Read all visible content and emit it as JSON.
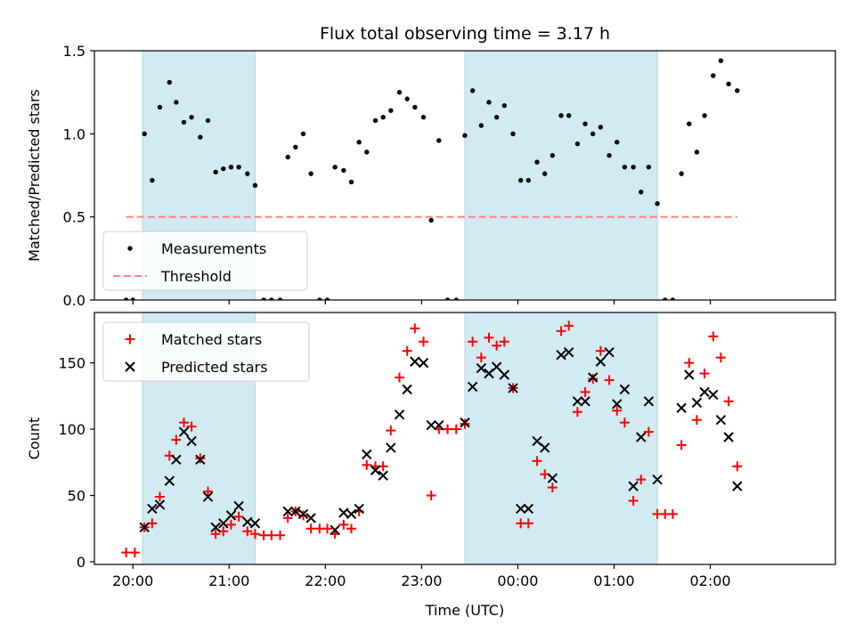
{
  "chart_data": [
    {
      "type": "scatter",
      "title": "Flux total observing time = 3.17 h",
      "xlabel": "",
      "ylabel": "Matched/Predicted stars",
      "ylim": [
        0,
        1.5
      ],
      "yticks": [
        0,
        0.5,
        1.0,
        1.5
      ],
      "ytick_labels": [
        "0.0",
        "0.5",
        "1.0",
        "1.5"
      ],
      "xlim_hours": [
        19.6,
        27.3
      ],
      "xticks": [
        20,
        21,
        22,
        23,
        24,
        25,
        26
      ],
      "xtick_labels": [],
      "shaded_x_ranges_hours": [
        [
          20.1,
          21.27
        ],
        [
          23.45,
          25.45
        ]
      ],
      "shade_color": "#add8e6",
      "legend_position": "lower-left",
      "series": [
        {
          "name": "Measurements",
          "marker": "dot",
          "color": "#000000",
          "x": [
            19.93,
            20.0,
            20.12,
            20.2,
            20.28,
            20.38,
            20.45,
            20.53,
            20.61,
            20.7,
            20.78,
            20.86,
            20.94,
            21.02,
            21.1,
            21.19,
            21.27,
            21.36,
            21.44,
            21.53,
            21.61,
            21.69,
            21.77,
            21.85,
            21.94,
            22.02,
            22.1,
            22.19,
            22.27,
            22.35,
            22.43,
            22.52,
            22.6,
            22.68,
            22.77,
            22.85,
            22.93,
            23.02,
            23.1,
            23.18,
            23.27,
            23.36,
            23.45,
            23.53,
            23.62,
            23.7,
            23.78,
            23.86,
            23.95,
            24.03,
            24.11,
            24.2,
            24.28,
            24.36,
            24.45,
            24.53,
            24.62,
            24.7,
            24.78,
            24.86,
            24.95,
            25.03,
            25.11,
            25.2,
            25.28,
            25.36,
            25.45,
            25.53,
            25.61,
            25.7,
            25.78,
            25.86,
            25.94,
            26.03,
            26.11,
            26.19,
            26.28
          ],
          "y": [
            0.0,
            0.0,
            1.0,
            0.72,
            1.16,
            1.31,
            1.19,
            1.07,
            1.1,
            0.98,
            1.08,
            0.77,
            0.79,
            0.8,
            0.8,
            0.76,
            0.69,
            0.0,
            0.0,
            0.0,
            0.86,
            0.92,
            1.0,
            0.76,
            0.0,
            0.0,
            0.8,
            0.78,
            0.71,
            0.95,
            0.89,
            1.08,
            1.1,
            1.14,
            1.25,
            1.21,
            1.16,
            1.1,
            0.48,
            0.96,
            0.0,
            0.0,
            0.99,
            1.26,
            1.05,
            1.19,
            1.1,
            1.17,
            1.0,
            0.72,
            0.72,
            0.83,
            0.76,
            0.87,
            1.11,
            1.11,
            0.94,
            1.06,
            1.0,
            1.04,
            0.87,
            0.95,
            0.8,
            0.8,
            0.65,
            0.8,
            0.58,
            0.0,
            0.0,
            0.76,
            1.06,
            0.89,
            1.11,
            1.35,
            1.44,
            1.3,
            1.26
          ]
        },
        {
          "name": "Threshold",
          "style": "dashed",
          "color": "#ff7f7f",
          "x": [
            19.93,
            26.28
          ],
          "y": [
            0.5,
            0.5
          ]
        }
      ]
    },
    {
      "type": "scatter",
      "title": "",
      "xlabel": "Time (UTC)",
      "ylabel": "Count",
      "ylim": [
        -2,
        188
      ],
      "yticks": [
        0,
        50,
        100,
        150
      ],
      "ytick_labels": [
        "0",
        "50",
        "100",
        "150"
      ],
      "xlim_hours": [
        19.6,
        27.3
      ],
      "xticks": [
        20,
        21,
        22,
        23,
        24,
        25,
        26
      ],
      "xtick_labels": [
        "20:00",
        "21:00",
        "22:00",
        "23:00",
        "00:00",
        "01:00",
        "02:00"
      ],
      "shaded_x_ranges_hours": [
        [
          20.1,
          21.27
        ],
        [
          23.45,
          25.45
        ]
      ],
      "shade_color": "#add8e6",
      "legend_position": "upper-left",
      "series": [
        {
          "name": "Matched stars",
          "marker": "plus",
          "color": "#ff0000",
          "x": [
            19.93,
            20.02,
            20.12,
            20.2,
            20.28,
            20.38,
            20.45,
            20.53,
            20.61,
            20.7,
            20.78,
            20.86,
            20.94,
            21.02,
            21.1,
            21.19,
            21.27,
            21.36,
            21.44,
            21.53,
            21.61,
            21.69,
            21.77,
            21.85,
            21.94,
            22.02,
            22.1,
            22.19,
            22.27,
            22.35,
            22.43,
            22.52,
            22.6,
            22.68,
            22.77,
            22.85,
            22.93,
            23.02,
            23.1,
            23.18,
            23.27,
            23.36,
            23.45,
            23.53,
            23.62,
            23.7,
            23.78,
            23.86,
            23.95,
            24.03,
            24.11,
            24.2,
            24.28,
            24.36,
            24.45,
            24.53,
            24.62,
            24.7,
            24.78,
            24.86,
            24.95,
            25.03,
            25.11,
            25.2,
            25.28,
            25.36,
            25.45,
            25.53,
            25.61,
            25.7,
            25.78,
            25.86,
            25.94,
            26.03,
            26.11,
            26.19,
            26.28
          ],
          "y": [
            7,
            7,
            26,
            29,
            49,
            80,
            92,
            105,
            102,
            78,
            53,
            21,
            23,
            28,
            34,
            23,
            21,
            20,
            20,
            20,
            33,
            38,
            35,
            25,
            25,
            25,
            21,
            28,
            25,
            38,
            73,
            72,
            72,
            99,
            139,
            159,
            176,
            166,
            50,
            100,
            100,
            100,
            104,
            166,
            154,
            169,
            163,
            166,
            131,
            29,
            29,
            76,
            66,
            56,
            174,
            178,
            113,
            128,
            138,
            159,
            137,
            114,
            105,
            46,
            62,
            98,
            36,
            36,
            36,
            88,
            150,
            107,
            142,
            170,
            154,
            121,
            72
          ]
        },
        {
          "name": "Predicted stars",
          "marker": "x",
          "color": "#000000",
          "x": [
            20.12,
            20.2,
            20.28,
            20.38,
            20.45,
            20.53,
            20.61,
            20.7,
            20.78,
            20.86,
            20.94,
            21.02,
            21.1,
            21.19,
            21.27,
            21.61,
            21.69,
            21.77,
            21.85,
            22.1,
            22.19,
            22.27,
            22.35,
            22.43,
            22.52,
            22.6,
            22.68,
            22.77,
            22.85,
            22.93,
            23.02,
            23.1,
            23.18,
            23.45,
            23.53,
            23.62,
            23.7,
            23.78,
            23.86,
            23.95,
            24.03,
            24.11,
            24.2,
            24.28,
            24.36,
            24.45,
            24.53,
            24.62,
            24.7,
            24.78,
            24.86,
            24.95,
            25.03,
            25.11,
            25.2,
            25.28,
            25.36,
            25.45,
            25.7,
            25.78,
            25.86,
            25.94,
            26.03,
            26.11,
            26.19,
            26.28
          ],
          "y": [
            26,
            40,
            43,
            61,
            77,
            98,
            91,
            77,
            49,
            26,
            29,
            35,
            42,
            30,
            29,
            38,
            38,
            36,
            33,
            24,
            37,
            36,
            40,
            81,
            69,
            65,
            86,
            111,
            130,
            151,
            150,
            103,
            103,
            105,
            132,
            146,
            142,
            147,
            141,
            131,
            40,
            40,
            91,
            86,
            63,
            156,
            158,
            121,
            121,
            139,
            151,
            158,
            119,
            130,
            57,
            94,
            121,
            62,
            116,
            141,
            120,
            128,
            126,
            107,
            94,
            57
          ]
        }
      ]
    }
  ]
}
